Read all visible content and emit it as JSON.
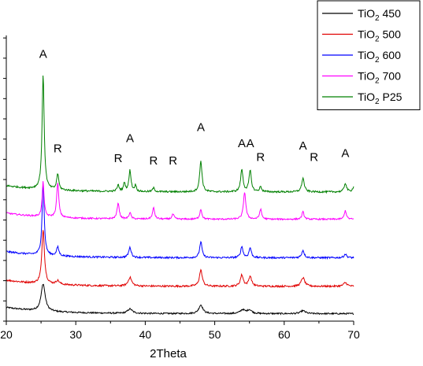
{
  "chart_data": {
    "type": "line",
    "title": "",
    "xlabel": "2Theta",
    "ylabel": "",
    "xlim": [
      20,
      70
    ],
    "x_ticks": [
      "20",
      "30",
      "40",
      "50",
      "60",
      "70"
    ],
    "y_tick_labels_shown": false,
    "grid": false,
    "legend_position": "top-right",
    "stacked_offsets": true,
    "series": [
      {
        "name_main": "TiO",
        "name_sub": "2",
        "name_rest": " 450",
        "color": "#000000",
        "baseline": 0.3,
        "peaks": [
          [
            25.3,
            1.1,
            0.35
          ],
          [
            37.8,
            0.18,
            0.4
          ],
          [
            48.0,
            0.35,
            0.35
          ],
          [
            54.0,
            0.15,
            0.4
          ],
          [
            55.0,
            0.15,
            0.4
          ],
          [
            62.7,
            0.12,
            0.4
          ]
        ],
        "noise": 0.06
      },
      {
        "name_main": "TiO",
        "name_sub": "2",
        "name_rest": " 500",
        "color": "#e00000",
        "baseline": 1.4,
        "peaks": [
          [
            25.3,
            2.2,
            0.22
          ],
          [
            27.4,
            0.15,
            0.3
          ],
          [
            37.8,
            0.35,
            0.3
          ],
          [
            48.0,
            0.65,
            0.25
          ],
          [
            53.9,
            0.45,
            0.25
          ],
          [
            55.1,
            0.4,
            0.25
          ],
          [
            62.7,
            0.35,
            0.3
          ],
          [
            68.8,
            0.15,
            0.3
          ]
        ],
        "noise": 0.07
      },
      {
        "name_main": "TiO",
        "name_sub": "2",
        "name_rest": " 600",
        "color": "#0000ff",
        "baseline": 2.55,
        "peaks": [
          [
            25.3,
            2.9,
            0.18
          ],
          [
            27.4,
            0.35,
            0.2
          ],
          [
            37.8,
            0.4,
            0.22
          ],
          [
            48.0,
            0.65,
            0.2
          ],
          [
            53.9,
            0.45,
            0.2
          ],
          [
            55.1,
            0.4,
            0.2
          ],
          [
            62.7,
            0.3,
            0.22
          ],
          [
            68.8,
            0.15,
            0.22
          ]
        ],
        "noise": 0.07
      },
      {
        "name_main": "TiO",
        "name_sub": "2",
        "name_rest": " 700",
        "color": "#ff00ff",
        "baseline": 4.1,
        "peaks": [
          [
            25.3,
            1.4,
            0.16
          ],
          [
            27.4,
            1.4,
            0.18
          ],
          [
            36.1,
            0.65,
            0.18
          ],
          [
            37.8,
            0.25,
            0.18
          ],
          [
            41.2,
            0.45,
            0.18
          ],
          [
            44.0,
            0.2,
            0.18
          ],
          [
            48.0,
            0.4,
            0.18
          ],
          [
            54.3,
            1.1,
            0.2
          ],
          [
            56.6,
            0.4,
            0.18
          ],
          [
            62.7,
            0.3,
            0.18
          ],
          [
            68.8,
            0.35,
            0.18
          ]
        ],
        "noise": 0.06
      },
      {
        "name_main": "TiO",
        "name_sub": "2",
        "name_rest": " P25",
        "color": "#008000",
        "baseline": 5.2,
        "peaks": [
          [
            25.3,
            4.6,
            0.18
          ],
          [
            27.4,
            0.65,
            0.18
          ],
          [
            36.1,
            0.25,
            0.18
          ],
          [
            37.0,
            0.35,
            0.15
          ],
          [
            37.8,
            0.85,
            0.18
          ],
          [
            38.6,
            0.25,
            0.15
          ],
          [
            41.2,
            0.15,
            0.18
          ],
          [
            48.0,
            1.25,
            0.2
          ],
          [
            53.9,
            0.9,
            0.2
          ],
          [
            55.1,
            0.85,
            0.2
          ],
          [
            56.6,
            0.2,
            0.18
          ],
          [
            62.7,
            0.55,
            0.22
          ],
          [
            68.8,
            0.35,
            0.2
          ],
          [
            70.0,
            0.2,
            0.2
          ]
        ],
        "noise": 0.07
      }
    ],
    "annotations": [
      {
        "text": "A",
        "x": 25.3,
        "y": 10.6
      },
      {
        "text": "R",
        "x": 27.4,
        "y": 6.8
      },
      {
        "text": "R",
        "x": 36.1,
        "y": 6.4
      },
      {
        "text": "A",
        "x": 37.8,
        "y": 7.2
      },
      {
        "text": "R",
        "x": 41.2,
        "y": 6.3
      },
      {
        "text": "R",
        "x": 44.0,
        "y": 6.3
      },
      {
        "text": "A",
        "x": 48.0,
        "y": 7.65
      },
      {
        "text": "A",
        "x": 53.9,
        "y": 7.0
      },
      {
        "text": "A",
        "x": 55.1,
        "y": 7.0
      },
      {
        "text": "R",
        "x": 56.6,
        "y": 6.45
      },
      {
        "text": "A",
        "x": 62.7,
        "y": 6.9
      },
      {
        "text": "R",
        "x": 64.3,
        "y": 6.45
      },
      {
        "text": "A",
        "x": 68.8,
        "y": 6.6
      }
    ]
  }
}
